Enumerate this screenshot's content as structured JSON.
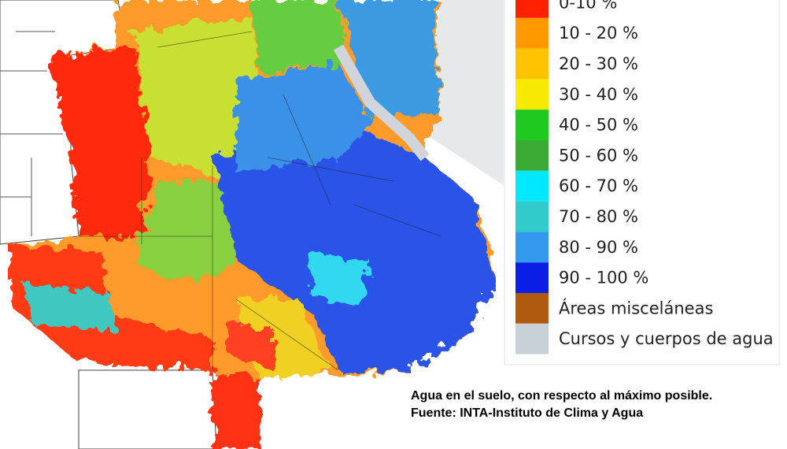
{
  "legend": {
    "items": [
      {
        "label": "0-10 %",
        "color": "#ff2000"
      },
      {
        "label": "10 - 20 %",
        "color": "#ff9900"
      },
      {
        "label": "20 - 30 %",
        "color": "#ffc200"
      },
      {
        "label": "30 - 40 %",
        "color": "#f5ea00"
      },
      {
        "label": "40 - 50 %",
        "color": "#1ec81e"
      },
      {
        "label": "50 - 60 %",
        "color": "#3aaa35"
      },
      {
        "label": "60 - 70 %",
        "color": "#00e8ff"
      },
      {
        "label": "70 - 80 %",
        "color": "#30cccc"
      },
      {
        "label": "80 - 90 %",
        "color": "#3399ee"
      },
      {
        "label": "90 - 100 %",
        "color": "#0a1ee6"
      },
      {
        "label": "Áreas misceláneas",
        "color": "#b05a10"
      },
      {
        "label": "Cursos y cuerpos de agua",
        "color": "#c8d0d8"
      }
    ]
  },
  "caption": [
    "Agua en el suelo, con respecto al máximo posible.",
    "Fuente: INTA-Instituto de Clima y Agua"
  ]
}
